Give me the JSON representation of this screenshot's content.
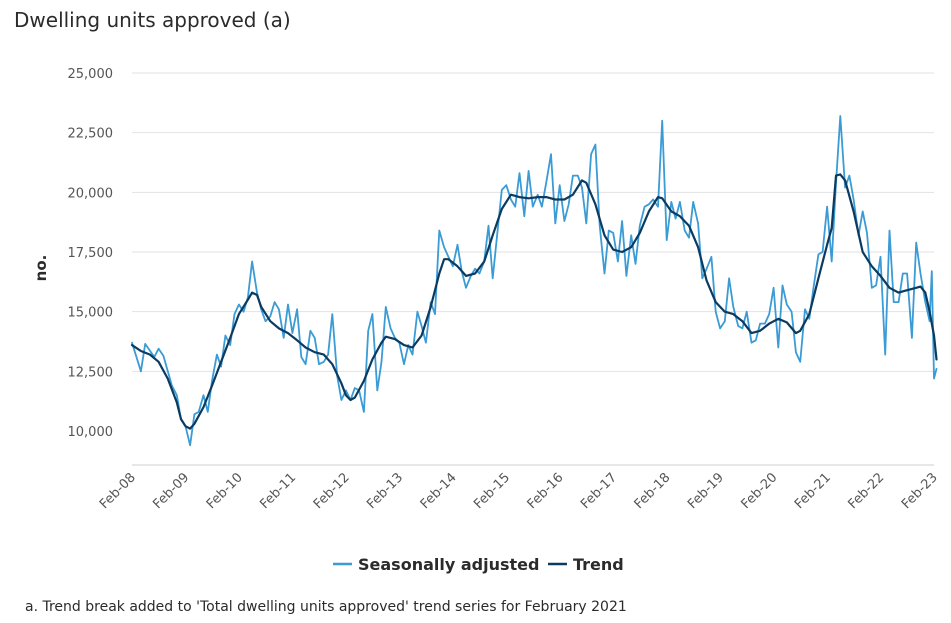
{
  "chart_data": {
    "type": "line",
    "title": "Dwelling units approved (a)",
    "ylabel": "no.",
    "xlabel": "",
    "ylim": [
      9000,
      25000
    ],
    "yticks": [
      10000,
      12500,
      15000,
      17500,
      20000,
      22500,
      25000
    ],
    "ytick_labels": [
      "10,000",
      "12,500",
      "15,000",
      "17,500",
      "20,000",
      "22,500",
      "25,000"
    ],
    "xlim": [
      2008.083,
      2023.083
    ],
    "xticks": [
      2008.083,
      2009.083,
      2010.083,
      2011.083,
      2012.083,
      2013.083,
      2014.083,
      2015.083,
      2016.083,
      2017.083,
      2018.083,
      2019.083,
      2020.083,
      2021.083,
      2022.083,
      2023.083
    ],
    "xtick_labels": [
      "Feb-08",
      "Feb-09",
      "Feb-10",
      "Feb-11",
      "Feb-12",
      "Feb-13",
      "Feb-14",
      "Feb-15",
      "Feb-16",
      "Feb-17",
      "Feb-18",
      "Feb-19",
      "Feb-20",
      "Feb-21",
      "Feb-22",
      "Feb-23"
    ],
    "legend_position": "bottom-center",
    "series": [
      {
        "name": "Seasonally adjusted",
        "color": "#3a9bd5",
        "points": [
          [
            2008.083,
            13700
          ],
          [
            2008.25,
            12500
          ],
          [
            2008.33,
            13650
          ],
          [
            2008.5,
            13100
          ],
          [
            2008.58,
            13450
          ],
          [
            2008.67,
            13150
          ],
          [
            2008.83,
            11900
          ],
          [
            2008.92,
            11500
          ],
          [
            2009.0,
            10500
          ],
          [
            2009.083,
            10200
          ],
          [
            2009.17,
            9400
          ],
          [
            2009.25,
            10700
          ],
          [
            2009.33,
            10800
          ],
          [
            2009.42,
            11500
          ],
          [
            2009.5,
            10800
          ],
          [
            2009.58,
            12100
          ],
          [
            2009.67,
            13200
          ],
          [
            2009.75,
            12700
          ],
          [
            2009.83,
            14000
          ],
          [
            2009.92,
            13600
          ],
          [
            2010.0,
            14900
          ],
          [
            2010.083,
            15300
          ],
          [
            2010.17,
            15000
          ],
          [
            2010.25,
            15600
          ],
          [
            2010.33,
            17100
          ],
          [
            2010.42,
            15800
          ],
          [
            2010.5,
            15100
          ],
          [
            2010.58,
            14600
          ],
          [
            2010.67,
            14800
          ],
          [
            2010.75,
            15400
          ],
          [
            2010.83,
            15100
          ],
          [
            2010.92,
            13900
          ],
          [
            2011.0,
            15300
          ],
          [
            2011.083,
            14100
          ],
          [
            2011.17,
            15100
          ],
          [
            2011.25,
            13100
          ],
          [
            2011.33,
            12800
          ],
          [
            2011.42,
            14200
          ],
          [
            2011.5,
            13900
          ],
          [
            2011.58,
            12800
          ],
          [
            2011.67,
            12900
          ],
          [
            2011.75,
            13200
          ],
          [
            2011.83,
            14900
          ],
          [
            2011.92,
            12300
          ],
          [
            2012.0,
            11300
          ],
          [
            2012.083,
            11700
          ],
          [
            2012.17,
            11300
          ],
          [
            2012.25,
            11800
          ],
          [
            2012.33,
            11700
          ],
          [
            2012.42,
            10800
          ],
          [
            2012.5,
            14200
          ],
          [
            2012.58,
            14900
          ],
          [
            2012.67,
            11700
          ],
          [
            2012.75,
            12900
          ],
          [
            2012.83,
            15200
          ],
          [
            2012.92,
            14300
          ],
          [
            2013.0,
            13900
          ],
          [
            2013.083,
            13700
          ],
          [
            2013.17,
            12800
          ],
          [
            2013.25,
            13600
          ],
          [
            2013.33,
            13200
          ],
          [
            2013.42,
            15000
          ],
          [
            2013.5,
            14400
          ],
          [
            2013.58,
            13700
          ],
          [
            2013.67,
            15400
          ],
          [
            2013.75,
            14900
          ],
          [
            2013.83,
            18400
          ],
          [
            2013.92,
            17700
          ],
          [
            2014.0,
            17300
          ],
          [
            2014.083,
            16900
          ],
          [
            2014.17,
            17800
          ],
          [
            2014.25,
            16700
          ],
          [
            2014.33,
            16000
          ],
          [
            2014.42,
            16500
          ],
          [
            2014.5,
            16800
          ],
          [
            2014.58,
            16600
          ],
          [
            2014.67,
            17100
          ],
          [
            2014.75,
            18600
          ],
          [
            2014.83,
            16400
          ],
          [
            2014.92,
            18400
          ],
          [
            2015.0,
            20100
          ],
          [
            2015.083,
            20300
          ],
          [
            2015.17,
            19700
          ],
          [
            2015.25,
            19400
          ],
          [
            2015.33,
            20800
          ],
          [
            2015.42,
            19000
          ],
          [
            2015.5,
            20900
          ],
          [
            2015.58,
            19400
          ],
          [
            2015.67,
            19900
          ],
          [
            2015.75,
            19400
          ],
          [
            2015.83,
            20400
          ],
          [
            2015.92,
            21600
          ],
          [
            2016.0,
            18700
          ],
          [
            2016.083,
            20300
          ],
          [
            2016.17,
            18800
          ],
          [
            2016.25,
            19500
          ],
          [
            2016.33,
            20700
          ],
          [
            2016.42,
            20700
          ],
          [
            2016.5,
            20200
          ],
          [
            2016.58,
            18700
          ],
          [
            2016.67,
            21600
          ],
          [
            2016.75,
            22000
          ],
          [
            2016.83,
            18600
          ],
          [
            2016.92,
            16600
          ],
          [
            2017.0,
            18400
          ],
          [
            2017.083,
            18300
          ],
          [
            2017.17,
            17100
          ],
          [
            2017.25,
            18800
          ],
          [
            2017.33,
            16500
          ],
          [
            2017.42,
            18200
          ],
          [
            2017.5,
            17000
          ],
          [
            2017.58,
            18600
          ],
          [
            2017.67,
            19400
          ],
          [
            2017.75,
            19500
          ],
          [
            2017.83,
            19700
          ],
          [
            2017.92,
            19400
          ],
          [
            2018.0,
            23000
          ],
          [
            2018.083,
            18000
          ],
          [
            2018.17,
            19600
          ],
          [
            2018.25,
            18900
          ],
          [
            2018.33,
            19600
          ],
          [
            2018.42,
            18400
          ],
          [
            2018.5,
            18100
          ],
          [
            2018.58,
            19600
          ],
          [
            2018.67,
            18700
          ],
          [
            2018.75,
            16400
          ],
          [
            2018.83,
            16800
          ],
          [
            2018.92,
            17300
          ],
          [
            2019.0,
            15000
          ],
          [
            2019.083,
            14300
          ],
          [
            2019.17,
            14600
          ],
          [
            2019.25,
            16400
          ],
          [
            2019.33,
            15200
          ],
          [
            2019.42,
            14400
          ],
          [
            2019.5,
            14300
          ],
          [
            2019.58,
            15000
          ],
          [
            2019.67,
            13700
          ],
          [
            2019.75,
            13800
          ],
          [
            2019.83,
            14500
          ],
          [
            2019.92,
            14500
          ],
          [
            2020.0,
            14900
          ],
          [
            2020.083,
            16000
          ],
          [
            2020.17,
            13500
          ],
          [
            2020.25,
            16100
          ],
          [
            2020.33,
            15300
          ],
          [
            2020.42,
            15000
          ],
          [
            2020.5,
            13300
          ],
          [
            2020.58,
            12900
          ],
          [
            2020.67,
            15100
          ],
          [
            2020.75,
            14700
          ],
          [
            2020.83,
            16000
          ],
          [
            2020.92,
            17400
          ],
          [
            2021.0,
            17500
          ],
          [
            2021.083,
            19400
          ],
          [
            2021.17,
            17100
          ],
          [
            2021.25,
            20400
          ],
          [
            2021.33,
            23200
          ],
          [
            2021.42,
            20200
          ],
          [
            2021.5,
            20700
          ],
          [
            2021.58,
            19700
          ],
          [
            2021.67,
            18200
          ],
          [
            2021.75,
            19200
          ],
          [
            2021.83,
            18300
          ],
          [
            2021.92,
            16000
          ],
          [
            2022.0,
            16100
          ],
          [
            2022.083,
            17300
          ],
          [
            2022.17,
            13200
          ],
          [
            2022.25,
            18400
          ],
          [
            2022.33,
            15400
          ],
          [
            2022.42,
            15400
          ],
          [
            2022.5,
            16600
          ],
          [
            2022.58,
            16600
          ],
          [
            2022.67,
            13900
          ],
          [
            2022.75,
            17900
          ],
          [
            2022.83,
            16600
          ],
          [
            2022.92,
            15400
          ],
          [
            2023.0,
            14600
          ],
          [
            2023.042,
            16700
          ],
          [
            2023.083,
            12200
          ],
          [
            2023.13,
            12600
          ]
        ]
      },
      {
        "name": "Trend",
        "color": "#0b3b61",
        "points": [
          [
            2008.083,
            13600
          ],
          [
            2008.25,
            13350
          ],
          [
            2008.42,
            13200
          ],
          [
            2008.58,
            12900
          ],
          [
            2008.75,
            12200
          ],
          [
            2008.92,
            11200
          ],
          [
            2009.0,
            10500
          ],
          [
            2009.083,
            10200
          ],
          [
            2009.17,
            10100
          ],
          [
            2009.25,
            10300
          ],
          [
            2009.42,
            11000
          ],
          [
            2009.58,
            11900
          ],
          [
            2009.75,
            12900
          ],
          [
            2009.92,
            13900
          ],
          [
            2010.083,
            14900
          ],
          [
            2010.25,
            15500
          ],
          [
            2010.33,
            15800
          ],
          [
            2010.42,
            15700
          ],
          [
            2010.5,
            15200
          ],
          [
            2010.67,
            14600
          ],
          [
            2010.83,
            14300
          ],
          [
            2011.0,
            14100
          ],
          [
            2011.17,
            13800
          ],
          [
            2011.33,
            13500
          ],
          [
            2011.5,
            13300
          ],
          [
            2011.67,
            13200
          ],
          [
            2011.83,
            12800
          ],
          [
            2012.0,
            12000
          ],
          [
            2012.083,
            11500
          ],
          [
            2012.17,
            11300
          ],
          [
            2012.25,
            11400
          ],
          [
            2012.42,
            12100
          ],
          [
            2012.58,
            13000
          ],
          [
            2012.75,
            13700
          ],
          [
            2012.83,
            13950
          ],
          [
            2013.0,
            13850
          ],
          [
            2013.17,
            13600
          ],
          [
            2013.33,
            13500
          ],
          [
            2013.5,
            14000
          ],
          [
            2013.67,
            15200
          ],
          [
            2013.83,
            16600
          ],
          [
            2013.92,
            17200
          ],
          [
            2014.0,
            17200
          ],
          [
            2014.17,
            16900
          ],
          [
            2014.33,
            16500
          ],
          [
            2014.5,
            16600
          ],
          [
            2014.67,
            17100
          ],
          [
            2014.83,
            18200
          ],
          [
            2015.0,
            19300
          ],
          [
            2015.17,
            19900
          ],
          [
            2015.33,
            19800
          ],
          [
            2015.5,
            19750
          ],
          [
            2015.67,
            19800
          ],
          [
            2015.83,
            19800
          ],
          [
            2016.0,
            19700
          ],
          [
            2016.17,
            19700
          ],
          [
            2016.33,
            19900
          ],
          [
            2016.5,
            20500
          ],
          [
            2016.58,
            20400
          ],
          [
            2016.75,
            19500
          ],
          [
            2016.92,
            18200
          ],
          [
            2017.083,
            17600
          ],
          [
            2017.25,
            17500
          ],
          [
            2017.42,
            17700
          ],
          [
            2017.58,
            18300
          ],
          [
            2017.75,
            19200
          ],
          [
            2017.92,
            19800
          ],
          [
            2018.0,
            19750
          ],
          [
            2018.17,
            19200
          ],
          [
            2018.33,
            19000
          ],
          [
            2018.5,
            18600
          ],
          [
            2018.67,
            17700
          ],
          [
            2018.83,
            16300
          ],
          [
            2019.0,
            15400
          ],
          [
            2019.17,
            15000
          ],
          [
            2019.33,
            14900
          ],
          [
            2019.5,
            14600
          ],
          [
            2019.67,
            14100
          ],
          [
            2019.83,
            14200
          ],
          [
            2020.0,
            14500
          ],
          [
            2020.17,
            14700
          ],
          [
            2020.33,
            14550
          ],
          [
            2020.5,
            14100
          ],
          [
            2020.58,
            14200
          ],
          [
            2020.75,
            14900
          ],
          [
            2020.92,
            16400
          ],
          [
            2021.083,
            17800
          ],
          [
            2021.17,
            18500
          ],
          [
            2021.25,
            20700
          ],
          [
            2021.33,
            20750
          ],
          [
            2021.42,
            20500
          ],
          [
            2021.58,
            19200
          ],
          [
            2021.75,
            17500
          ],
          [
            2021.92,
            16900
          ],
          [
            2022.083,
            16500
          ],
          [
            2022.25,
            16000
          ],
          [
            2022.42,
            15800
          ],
          [
            2022.58,
            15900
          ],
          [
            2022.75,
            16000
          ],
          [
            2022.83,
            16050
          ],
          [
            2022.92,
            15800
          ],
          [
            2023.0,
            15000
          ],
          [
            2023.083,
            14000
          ],
          [
            2023.13,
            13000
          ]
        ]
      }
    ],
    "footnote": "a. Trend break added to 'Total dwelling units approved' trend series for February 2021"
  }
}
